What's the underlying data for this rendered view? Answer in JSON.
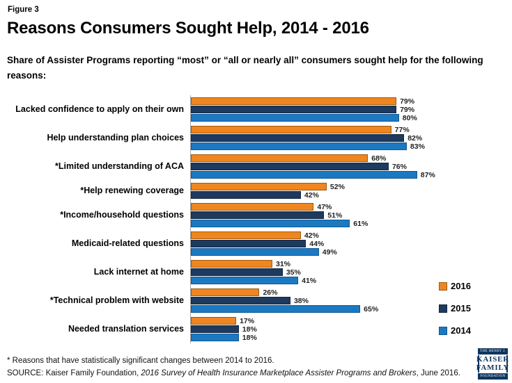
{
  "figure_label": "Figure 3",
  "title": "Reasons Consumers Sought Help, 2014 - 2016",
  "subtitle": "Share of Assister Programs reporting “most” or “all or nearly all” consumers sought help for the following reasons:",
  "chart_data": {
    "type": "bar",
    "orientation": "horizontal",
    "categories": [
      "Lacked confidence to apply on their own",
      "Help understanding plan choices",
      "*Limited understanding of ACA",
      "*Help renewing coverage",
      "*Income/household questions",
      "Medicaid-related questions",
      "Lack internet at home",
      "*Technical problem with website",
      "Needed translation services"
    ],
    "series": [
      {
        "name": "2016",
        "color": "#f0861f",
        "border": "#9c5a10",
        "values": [
          79,
          77,
          68,
          52,
          47,
          42,
          31,
          26,
          17
        ]
      },
      {
        "name": "2015",
        "color": "#1e3a5e",
        "border": "#13263e",
        "values": [
          79,
          82,
          76,
          42,
          51,
          44,
          35,
          38,
          18
        ]
      },
      {
        "name": "2014",
        "color": "#1b79c2",
        "border": "#14568f",
        "values": [
          80,
          83,
          87,
          null,
          61,
          49,
          41,
          65,
          18
        ]
      }
    ],
    "value_suffix": "%",
    "xlim": [
      0,
      100
    ],
    "grid": false,
    "legend_position": "right",
    "axis_color": "#a6a6a6"
  },
  "footer": {
    "footnote": "* Reasons that have statistically significant changes between 2014 to 2016.",
    "source_prefix": "SOURCE: Kaiser Family Foundation, ",
    "source_italic": "2016 Survey of Health Insurance Marketplace Assister Programs and Brokers",
    "source_suffix": ", June 2016."
  },
  "logo": {
    "line_top": "THE HENRY J.",
    "line_kaiser": "KAISER",
    "line_family": "FAMILY",
    "line_bottom": "FOUNDATION"
  }
}
